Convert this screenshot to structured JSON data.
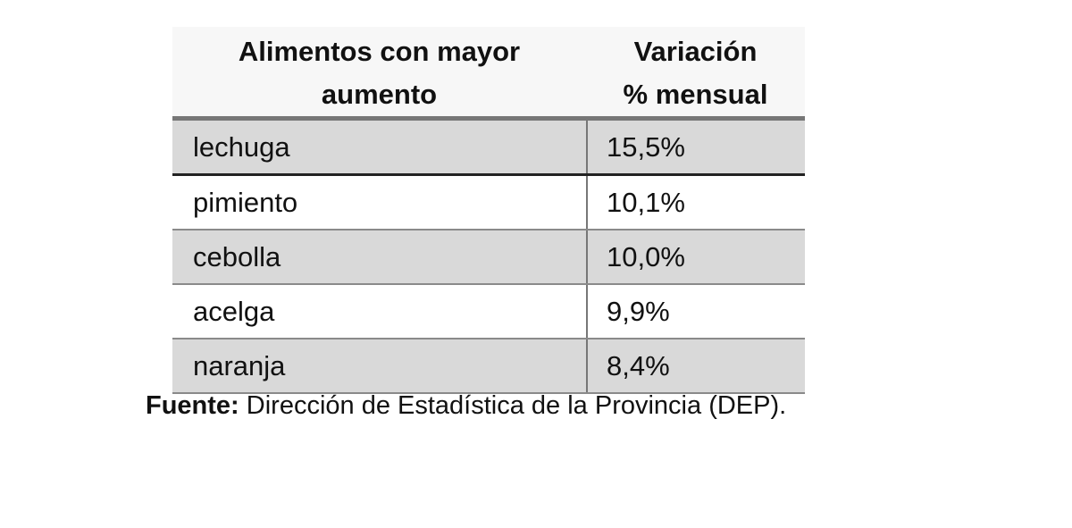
{
  "table": {
    "headers": [
      "Alimentos con mayor aumento",
      "Variación % mensual"
    ],
    "header_lines": [
      [
        "Alimentos con mayor",
        "aumento"
      ],
      [
        "Variación",
        "% mensual"
      ]
    ],
    "rows": [
      {
        "item": "lechuga",
        "value": "15,5%"
      },
      {
        "item": "pimiento",
        "value": "10,1%"
      },
      {
        "item": "cebolla",
        "value": "10,0%"
      },
      {
        "item": "acelga",
        "value": "9,9%"
      },
      {
        "item": "naranja",
        "value": "8,4%"
      }
    ]
  },
  "source": {
    "label": "Fuente:",
    "text": " Dirección de Estadística de la Provincia (DEP)."
  },
  "colors": {
    "shaded_row": "#d9d9d9",
    "header_bg": "#f7f7f7"
  }
}
